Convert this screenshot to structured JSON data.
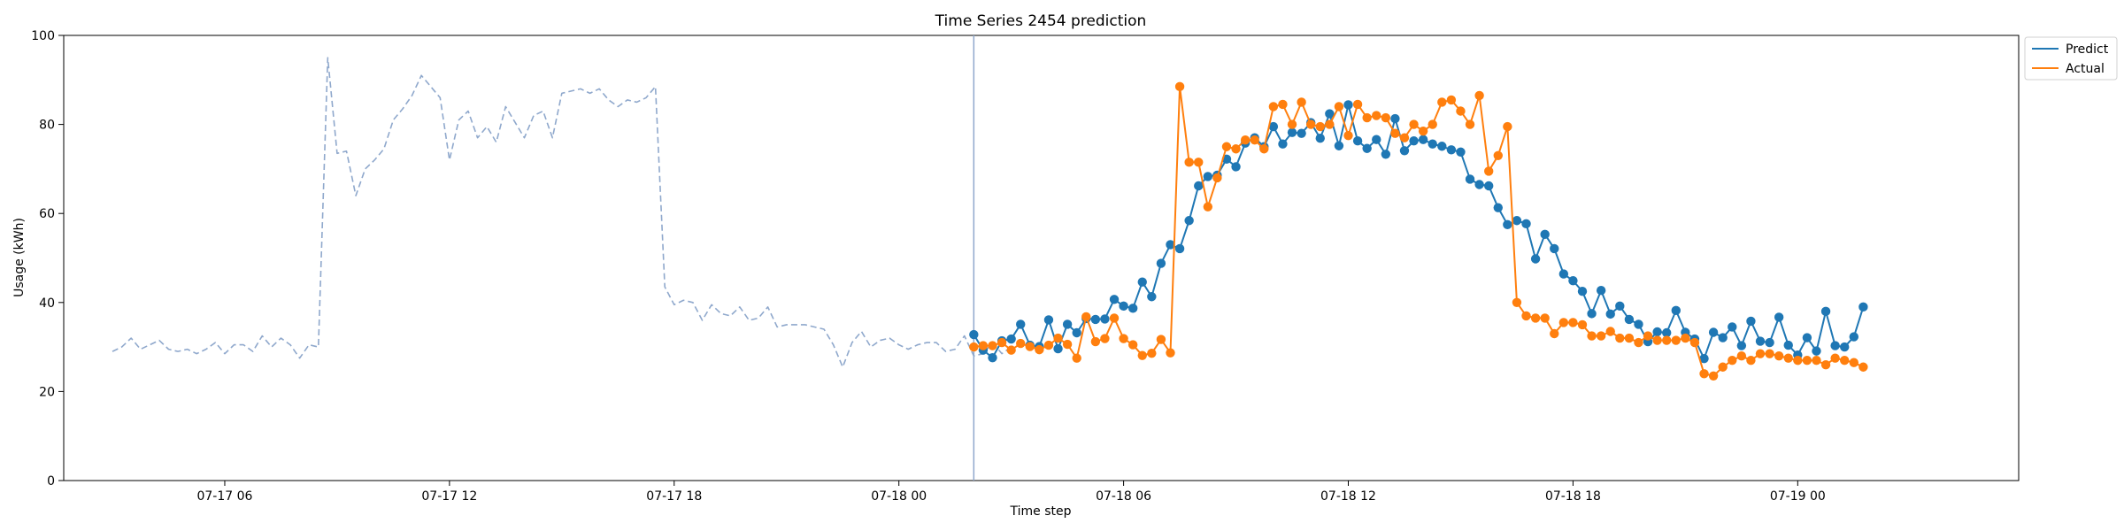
{
  "chart_data": {
    "type": "line",
    "title": "Time Series 2454 prediction",
    "xlabel": "Time step",
    "ylabel": "Usage (kWh)",
    "ylim": [
      0,
      100
    ],
    "xlim": [
      "2024-07-17 01:42",
      "2024-07-19 05:54"
    ],
    "yticks": [
      0,
      20,
      40,
      60,
      80,
      100
    ],
    "xticks": [
      {
        "value": "2024-07-17 06:00",
        "label": "07-17 06"
      },
      {
        "value": "2024-07-17 12:00",
        "label": "07-17 12"
      },
      {
        "value": "2024-07-17 18:00",
        "label": "07-17 18"
      },
      {
        "value": "2024-07-18 00:00",
        "label": "07-18 00"
      },
      {
        "value": "2024-07-18 06:00",
        "label": "07-18 06"
      },
      {
        "value": "2024-07-18 12:00",
        "label": "07-18 12"
      },
      {
        "value": "2024-07-18 18:00",
        "label": "07-18 18"
      },
      {
        "value": "2024-07-19 00:00",
        "label": "07-19 00"
      }
    ],
    "grid": false,
    "legend": {
      "position": "top-right"
    },
    "interval_minutes": 15,
    "forecast_start": "2024-07-18 02:00",
    "series": [
      {
        "name": "",
        "role": "history",
        "style": "dashed",
        "color": "#8fa8cc",
        "start": "2024-07-17 03:00",
        "values": [
          29.0,
          30.0,
          32.0,
          29.5,
          30.5,
          31.5,
          29.5,
          29.0,
          29.5,
          28.5,
          29.5,
          31.0,
          28.5,
          30.5,
          30.5,
          29.0,
          32.5,
          30.0,
          32.0,
          30.5,
          27.5,
          30.5,
          30.0,
          95.0,
          73.5,
          74.0,
          64.0,
          70.0,
          72.0,
          74.5,
          81.0,
          83.5,
          86.5,
          91.0,
          88.5,
          86.0,
          72.0,
          81.0,
          83.0,
          77.0,
          79.5,
          76.0,
          84.0,
          80.5,
          77.0,
          82.0,
          83.0,
          77.0,
          87.0,
          87.5,
          88.0,
          87.0,
          88.0,
          85.5,
          84.0,
          85.5,
          85.0,
          86.0,
          88.5,
          43.5,
          39.5,
          40.5,
          40.0,
          36.0,
          39.5,
          37.5,
          37.0,
          39.0,
          36.0,
          36.5,
          39.0,
          34.5,
          35.0,
          35.0,
          35.0,
          34.5,
          34.0,
          30.5,
          25.5,
          31.0,
          33.5,
          30.0,
          31.5,
          32.0,
          30.5,
          29.5,
          30.5,
          31.0,
          31.0,
          29.0,
          29.5,
          32.5,
          28.0,
          28.5,
          31.0,
          28.5,
          30.0
        ]
      },
      {
        "name": "Predict",
        "role": "prediction",
        "style": "solid-marker",
        "color": "#1f77b4",
        "start": "2024-07-18 02:00",
        "values": [
          32.8,
          29.3,
          27.6,
          31.4,
          31.8,
          35.1,
          30.4,
          30.1,
          36.1,
          29.6,
          35.1,
          33.2,
          36.4,
          36.2,
          36.3,
          40.7,
          39.2,
          38.7,
          44.6,
          41.3,
          48.8,
          53.0,
          52.1,
          58.4,
          66.2,
          68.3,
          68.6,
          72.2,
          70.5,
          75.8,
          77.0,
          75.0,
          79.5,
          75.6,
          78.2,
          78.0,
          80.4,
          76.9,
          82.4,
          75.2,
          84.4,
          76.3,
          74.6,
          76.6,
          73.3,
          81.3,
          74.1,
          76.3,
          76.6,
          75.6,
          75.1,
          74.3,
          73.8,
          67.7,
          66.5,
          66.2,
          61.3,
          57.5,
          58.4,
          57.7,
          49.8,
          55.3,
          52.1,
          46.4,
          44.9,
          42.5,
          37.5,
          42.7,
          37.4,
          39.2,
          36.2,
          35.1,
          31.2,
          33.4,
          33.2,
          38.2,
          33.3,
          31.8,
          27.4,
          33.3,
          32.1,
          34.5,
          30.3,
          35.8,
          31.3,
          31.0,
          36.7,
          30.4,
          28.2,
          32.1,
          29.1,
          38.0,
          30.3,
          30.0,
          32.3,
          39.0
        ]
      },
      {
        "name": "Actual",
        "role": "actual",
        "style": "solid-marker",
        "color": "#ff7f0e",
        "start": "2024-07-18 02:00",
        "values": [
          30.0,
          30.3,
          30.3,
          31.0,
          29.3,
          30.8,
          30.1,
          29.4,
          30.4,
          32.0,
          30.6,
          27.5,
          36.8,
          31.2,
          31.9,
          36.5,
          31.9,
          30.5,
          28.1,
          28.6,
          31.7,
          28.7,
          88.5,
          71.5,
          71.5,
          61.5,
          68.0,
          75.0,
          74.5,
          76.5,
          76.5,
          74.5,
          84.0,
          84.5,
          80.0,
          85.0,
          80.0,
          79.5,
          80.0,
          84.0,
          77.5,
          84.5,
          81.5,
          82.0,
          81.5,
          78.0,
          77.0,
          80.0,
          78.5,
          80.0,
          85.0,
          85.5,
          83.0,
          80.0,
          86.5,
          69.5,
          73.0,
          79.5,
          40.0,
          37.0,
          36.5,
          36.5,
          33.0,
          35.5,
          35.5,
          35.0,
          32.5,
          32.5,
          33.5,
          32.0,
          32.0,
          31.0,
          32.5,
          31.5,
          31.5,
          31.5,
          32.0,
          31.0,
          24.0,
          23.5,
          25.5,
          27.0,
          28.0,
          27.0,
          28.5,
          28.5,
          28.0,
          27.5,
          27.0,
          27.0,
          27.0,
          26.0,
          27.5,
          27.0,
          26.5,
          25.5
        ]
      }
    ]
  },
  "colors": {
    "predict": "#1f77b4",
    "actual": "#ff7f0e",
    "history": "#8fa8cc",
    "forecast_line": "#8fa8cc"
  }
}
